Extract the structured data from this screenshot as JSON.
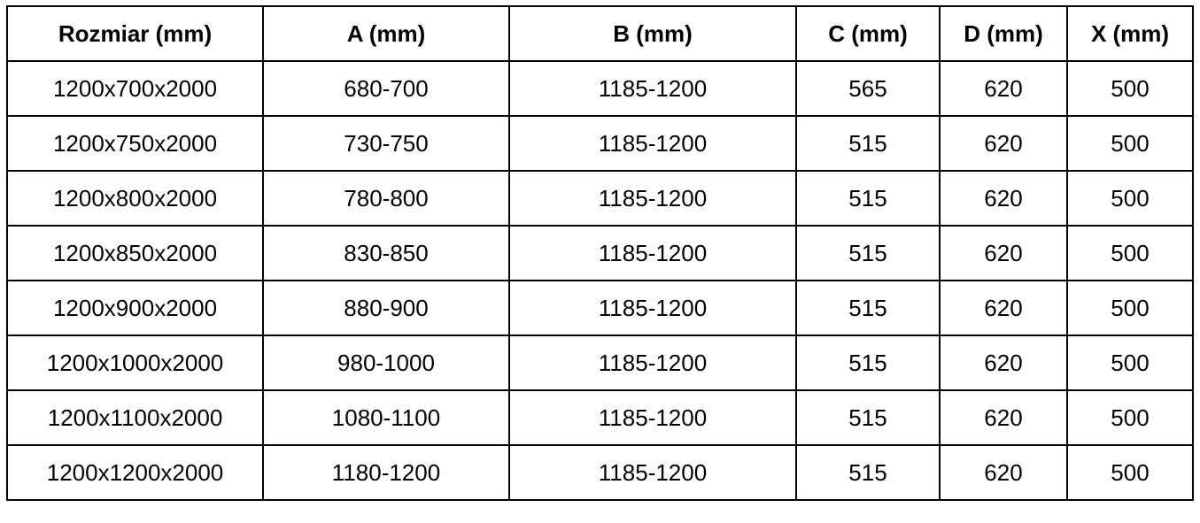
{
  "table": {
    "headers": [
      "Rozmiar (mm)",
      "A (mm)",
      "B (mm)",
      "C (mm)",
      "D (mm)",
      "X (mm)"
    ],
    "rows": [
      [
        "1200x700x2000",
        "680-700",
        "1185-1200",
        "565",
        "620",
        "500"
      ],
      [
        "1200x750x2000",
        "730-750",
        "1185-1200",
        "515",
        "620",
        "500"
      ],
      [
        "1200x800x2000",
        "780-800",
        "1185-1200",
        "515",
        "620",
        "500"
      ],
      [
        "1200x850x2000",
        "830-850",
        "1185-1200",
        "515",
        "620",
        "500"
      ],
      [
        "1200x900x2000",
        "880-900",
        "1185-1200",
        "515",
        "620",
        "500"
      ],
      [
        "1200x1000x2000",
        "980-1000",
        "1185-1200",
        "515",
        "620",
        "500"
      ],
      [
        "1200x1100x2000",
        "1080-1100",
        "1185-1200",
        "515",
        "620",
        "500"
      ],
      [
        "1200x1200x2000",
        "1180-1200",
        "1185-1200",
        "515",
        "620",
        "500"
      ]
    ]
  }
}
